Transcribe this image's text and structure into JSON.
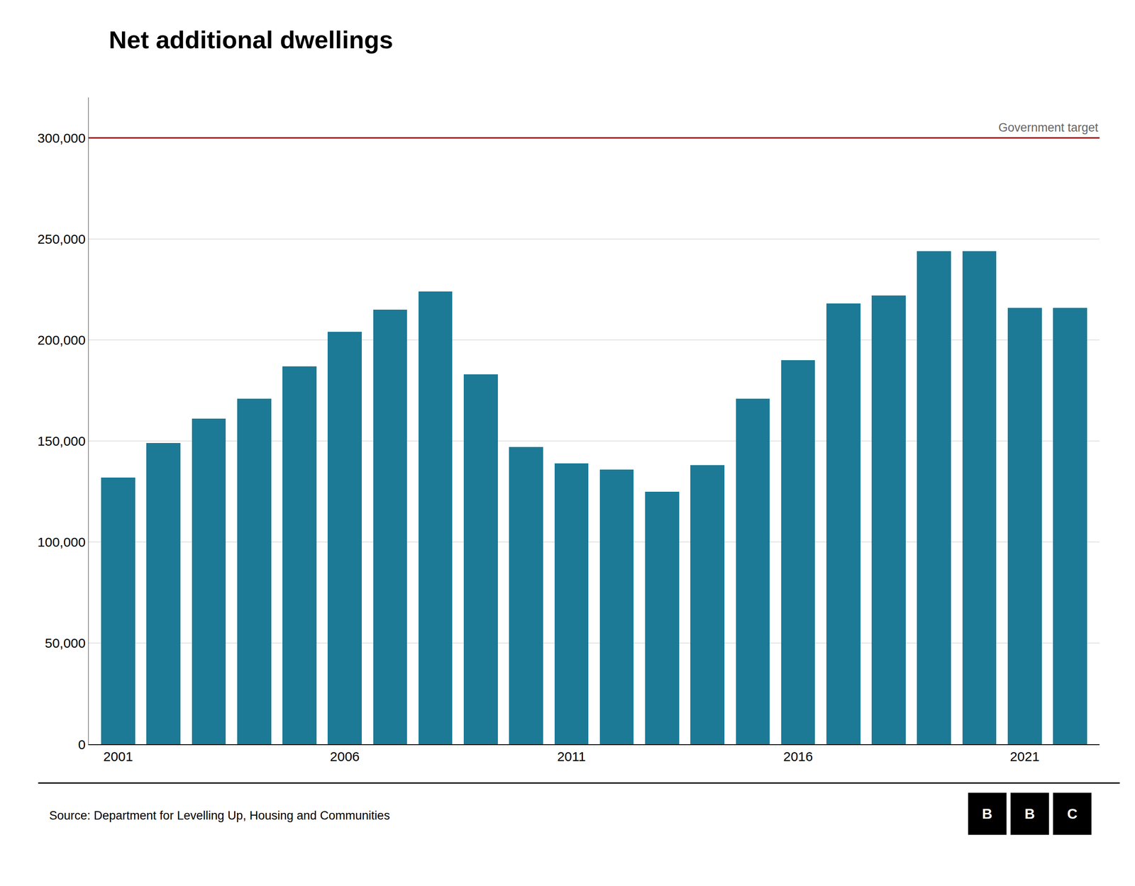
{
  "chart_data": {
    "type": "bar",
    "title": "Net additional dwellings",
    "x": [
      2001,
      2002,
      2003,
      2004,
      2005,
      2006,
      2007,
      2008,
      2009,
      2010,
      2011,
      2012,
      2013,
      2014,
      2015,
      2016,
      2017,
      2018,
      2019,
      2020,
      2021,
      2022
    ],
    "values": [
      132000,
      149000,
      161000,
      171000,
      187000,
      204000,
      215000,
      224000,
      183000,
      147000,
      139000,
      136000,
      125000,
      138000,
      171000,
      190000,
      218000,
      222000,
      244000,
      244000,
      216000,
      216000
    ],
    "color": "#1c7a96",
    "xlim": [
      2000.35,
      2022.65
    ],
    "xticks": [
      2001,
      2006,
      2011,
      2016,
      2021
    ],
    "ylim": [
      0,
      320000
    ],
    "yticks": [
      0,
      {
        "value": 50000,
        "label": "50,000"
      },
      {
        "value": 100000,
        "label": "100,000"
      },
      {
        "value": 150000,
        "label": "150,000"
      },
      {
        "value": 200000,
        "label": "200,000"
      },
      {
        "value": 250000,
        "label": "250,000"
      },
      {
        "value": 300000,
        "label": "300,000"
      }
    ],
    "grid": true,
    "target": {
      "value": 300000,
      "label": "Government target",
      "color": "#8b0000",
      "label_color": "#666666"
    },
    "source": "Source: Department for Levelling Up, Housing and Communities",
    "logo": [
      "B",
      "B",
      "C"
    ]
  }
}
